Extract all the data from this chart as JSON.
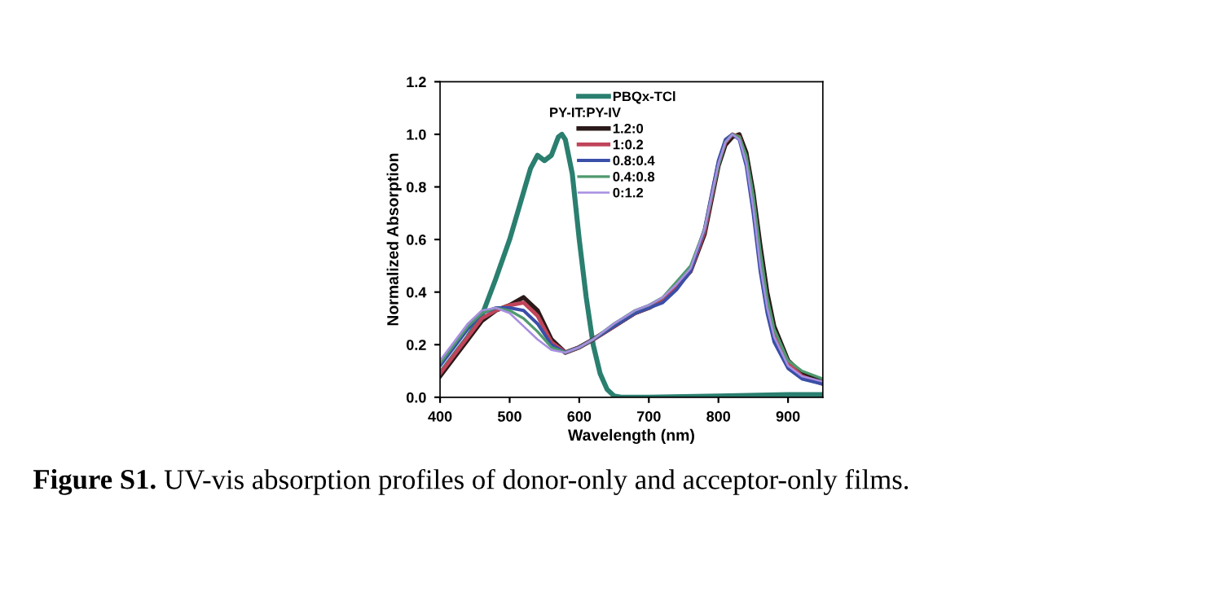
{
  "chart_data": {
    "type": "line",
    "xlabel": "Wavelength (nm)",
    "ylabel": "Normalized Absorption",
    "legend_title": "PY-IT:PY-IV",
    "xlim": [
      400,
      950
    ],
    "xticks": [
      400,
      500,
      600,
      700,
      800,
      900
    ],
    "ylim": [
      0,
      1.2
    ],
    "yticks": [
      {
        "value": 0,
        "label": "0.0"
      },
      {
        "value": 0.2,
        "label": "0.2"
      },
      {
        "value": 0.4,
        "label": "0.4"
      },
      {
        "value": 0.6,
        "label": "0.6"
      },
      {
        "value": 0.8,
        "label": "0.8"
      },
      {
        "value": 1.0,
        "label": "1.0"
      },
      {
        "value": 1.2,
        "label": "1.2"
      }
    ],
    "legend": "top",
    "grid": false,
    "marker": "none",
    "line_style": "solid",
    "annotations": [
      "Figure S1. UV-vis absorption profiles of donor-only and acceptor-only films."
    ],
    "series": [
      {
        "name": "PBQx-TCl",
        "color": "#2a7f6f",
        "x": [
          400,
          420,
          440,
          460,
          480,
          500,
          520,
          530,
          540,
          550,
          560,
          570,
          575,
          580,
          590,
          600,
          610,
          620,
          630,
          640,
          650,
          660,
          700,
          800,
          900,
          950
        ],
        "values": [
          0.09,
          0.16,
          0.23,
          0.31,
          0.45,
          0.6,
          0.78,
          0.87,
          0.92,
          0.9,
          0.92,
          0.99,
          1.0,
          0.98,
          0.85,
          0.6,
          0.38,
          0.2,
          0.09,
          0.03,
          0.005,
          0.0,
          0.0,
          0.005,
          0.01,
          0.01
        ]
      },
      {
        "name": "1.2:0",
        "color": "#2b1a1a",
        "x": [
          400,
          420,
          440,
          460,
          480,
          500,
          520,
          540,
          560,
          580,
          600,
          620,
          650,
          680,
          700,
          720,
          740,
          760,
          780,
          800,
          810,
          820,
          830,
          840,
          850,
          860,
          870,
          880,
          900,
          920,
          950
        ],
        "values": [
          0.08,
          0.15,
          0.22,
          0.29,
          0.33,
          0.35,
          0.38,
          0.33,
          0.22,
          0.17,
          0.19,
          0.22,
          0.27,
          0.32,
          0.34,
          0.37,
          0.42,
          0.48,
          0.62,
          0.88,
          0.96,
          0.99,
          1.0,
          0.93,
          0.78,
          0.58,
          0.4,
          0.27,
          0.14,
          0.09,
          0.06
        ]
      },
      {
        "name": "1:0.2",
        "color": "#c0455a",
        "x": [
          400,
          420,
          440,
          460,
          480,
          500,
          520,
          540,
          560,
          580,
          600,
          620,
          650,
          680,
          700,
          720,
          740,
          760,
          780,
          800,
          810,
          820,
          830,
          840,
          850,
          860,
          870,
          880,
          900,
          920,
          950
        ],
        "values": [
          0.09,
          0.16,
          0.23,
          0.3,
          0.33,
          0.35,
          0.36,
          0.31,
          0.21,
          0.17,
          0.19,
          0.22,
          0.27,
          0.32,
          0.34,
          0.37,
          0.42,
          0.48,
          0.63,
          0.89,
          0.97,
          1.0,
          0.99,
          0.9,
          0.73,
          0.52,
          0.35,
          0.24,
          0.13,
          0.08,
          0.05
        ]
      },
      {
        "name": "0.8:0.4",
        "color": "#3a4fa8",
        "x": [
          400,
          420,
          440,
          460,
          480,
          500,
          520,
          540,
          560,
          580,
          600,
          620,
          650,
          680,
          700,
          720,
          740,
          760,
          780,
          800,
          810,
          820,
          830,
          840,
          850,
          860,
          870,
          880,
          900,
          920,
          950
        ],
        "values": [
          0.12,
          0.19,
          0.26,
          0.32,
          0.34,
          0.34,
          0.33,
          0.28,
          0.2,
          0.17,
          0.19,
          0.22,
          0.27,
          0.32,
          0.34,
          0.36,
          0.41,
          0.48,
          0.64,
          0.9,
          0.98,
          1.0,
          0.98,
          0.88,
          0.7,
          0.48,
          0.32,
          0.21,
          0.11,
          0.07,
          0.05
        ]
      },
      {
        "name": "0.4:0.8",
        "color": "#4f9a6e",
        "x": [
          400,
          420,
          440,
          460,
          480,
          500,
          520,
          540,
          560,
          580,
          600,
          620,
          650,
          680,
          700,
          720,
          740,
          760,
          780,
          800,
          810,
          820,
          830,
          840,
          850,
          860,
          870,
          880,
          900,
          920,
          950
        ],
        "values": [
          0.13,
          0.2,
          0.27,
          0.32,
          0.34,
          0.33,
          0.3,
          0.25,
          0.19,
          0.17,
          0.19,
          0.22,
          0.28,
          0.33,
          0.35,
          0.38,
          0.44,
          0.5,
          0.64,
          0.88,
          0.97,
          1.0,
          0.99,
          0.92,
          0.77,
          0.56,
          0.38,
          0.26,
          0.14,
          0.1,
          0.07
        ]
      },
      {
        "name": "0:1.2",
        "color": "#a88ee0",
        "x": [
          400,
          420,
          440,
          460,
          480,
          500,
          520,
          540,
          560,
          580,
          600,
          620,
          650,
          680,
          700,
          720,
          740,
          760,
          780,
          800,
          810,
          820,
          830,
          840,
          850,
          860,
          870,
          880,
          900,
          920,
          950
        ],
        "values": [
          0.14,
          0.21,
          0.28,
          0.33,
          0.34,
          0.32,
          0.27,
          0.22,
          0.18,
          0.17,
          0.19,
          0.22,
          0.28,
          0.33,
          0.35,
          0.38,
          0.43,
          0.49,
          0.64,
          0.89,
          0.97,
          1.0,
          0.98,
          0.89,
          0.72,
          0.5,
          0.34,
          0.23,
          0.12,
          0.08,
          0.06
        ]
      }
    ]
  }
}
